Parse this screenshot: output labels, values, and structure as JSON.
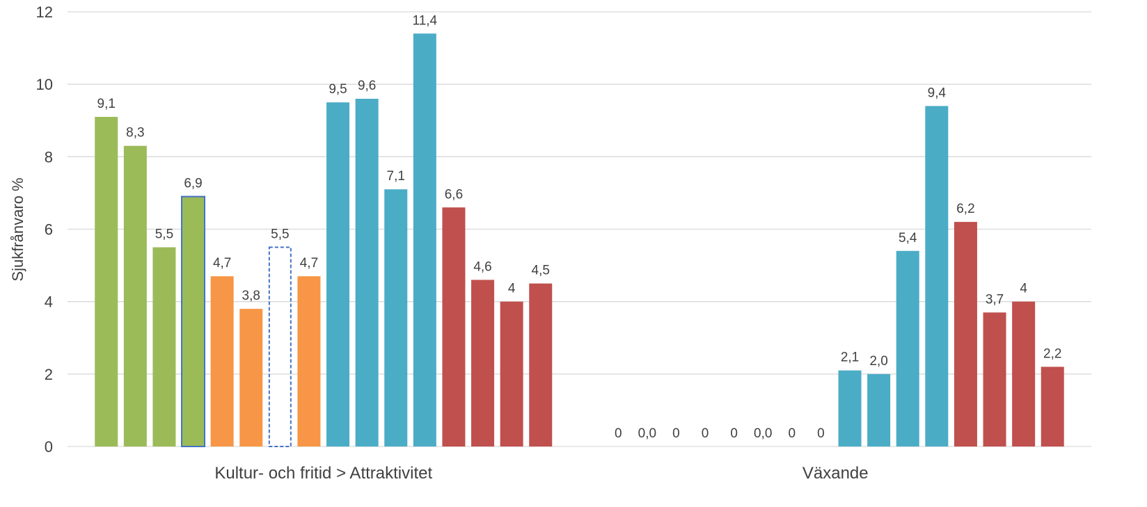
{
  "chart_data": {
    "type": "bar",
    "ylabel": "Sjukfrånvaro %",
    "ylim": [
      0,
      12
    ],
    "yticks": [
      "0",
      "2",
      "4",
      "6",
      "8",
      "10",
      "12"
    ],
    "grid": "horizontal",
    "legend": "none",
    "colors": {
      "green": "#9bbb59",
      "orange": "#f79646",
      "teal": "#4bacc6",
      "red": "#c0504d",
      "highlight_border": "#4472c4"
    },
    "categories": [
      "Kultur- och fritid > Attraktivitet",
      "Växande"
    ],
    "bars": [
      {
        "category": "Kultur- och fritid > Attraktivitet",
        "value": 9.1,
        "label": "9,1",
        "color": "green"
      },
      {
        "category": "Kultur- och fritid > Attraktivitet",
        "value": 8.3,
        "label": "8,3",
        "color": "green"
      },
      {
        "category": "Kultur- och fritid > Attraktivitet",
        "value": 5.5,
        "label": "5,5",
        "color": "green"
      },
      {
        "category": "Kultur- och fritid > Attraktivitet",
        "value": 6.9,
        "label": "6,9",
        "color": "green",
        "style": "outlined"
      },
      {
        "category": "Kultur- och fritid > Attraktivitet",
        "value": 4.7,
        "label": "4,7",
        "color": "orange"
      },
      {
        "category": "Kultur- och fritid > Attraktivitet",
        "value": 3.8,
        "label": "3,8",
        "color": "orange"
      },
      {
        "category": "Kultur- och fritid > Attraktivitet",
        "value": 5.5,
        "label": "5,5",
        "color": "none",
        "style": "dashed"
      },
      {
        "category": "Kultur- och fritid > Attraktivitet",
        "value": 4.7,
        "label": "4,7",
        "color": "orange"
      },
      {
        "category": "Kultur- och fritid > Attraktivitet",
        "value": 9.5,
        "label": "9,5",
        "color": "teal"
      },
      {
        "category": "Kultur- och fritid > Attraktivitet",
        "value": 9.6,
        "label": "9,6",
        "color": "teal"
      },
      {
        "category": "Kultur- och fritid > Attraktivitet",
        "value": 7.1,
        "label": "7,1",
        "color": "teal"
      },
      {
        "category": "Kultur- och fritid > Attraktivitet",
        "value": 11.4,
        "label": "11,4",
        "color": "teal"
      },
      {
        "category": "Kultur- och fritid > Attraktivitet",
        "value": 6.6,
        "label": "6,6",
        "color": "red"
      },
      {
        "category": "Kultur- och fritid > Attraktivitet",
        "value": 4.6,
        "label": "4,6",
        "color": "red"
      },
      {
        "category": "Kultur- och fritid > Attraktivitet",
        "value": 4.0,
        "label": "4",
        "color": "red"
      },
      {
        "category": "Kultur- och fritid > Attraktivitet",
        "value": 4.5,
        "label": "4,5",
        "color": "red"
      },
      {
        "category": "Växande",
        "value": 0,
        "label": "0",
        "color": "green"
      },
      {
        "category": "Växande",
        "value": 0,
        "label": "0,0",
        "color": "green"
      },
      {
        "category": "Växande",
        "value": 0,
        "label": "0",
        "color": "green"
      },
      {
        "category": "Växande",
        "value": 0,
        "label": "0",
        "color": "green"
      },
      {
        "category": "Växande",
        "value": 0,
        "label": "0",
        "color": "orange"
      },
      {
        "category": "Växande",
        "value": 0,
        "label": "0,0",
        "color": "orange"
      },
      {
        "category": "Växande",
        "value": 0,
        "label": "0",
        "color": "orange"
      },
      {
        "category": "Växande",
        "value": 0,
        "label": "0",
        "color": "orange"
      },
      {
        "category": "Växande",
        "value": 2.1,
        "label": "2,1",
        "color": "teal"
      },
      {
        "category": "Växande",
        "value": 2.0,
        "label": "2,0",
        "color": "teal"
      },
      {
        "category": "Växande",
        "value": 5.4,
        "label": "5,4",
        "color": "teal"
      },
      {
        "category": "Växande",
        "value": 9.4,
        "label": "9,4",
        "color": "teal"
      },
      {
        "category": "Växande",
        "value": 6.2,
        "label": "6,2",
        "color": "red"
      },
      {
        "category": "Växande",
        "value": 3.7,
        "label": "3,7",
        "color": "red"
      },
      {
        "category": "Växande",
        "value": 4.0,
        "label": "4",
        "color": "red"
      },
      {
        "category": "Växande",
        "value": 2.2,
        "label": "2,2",
        "color": "red"
      }
    ]
  }
}
